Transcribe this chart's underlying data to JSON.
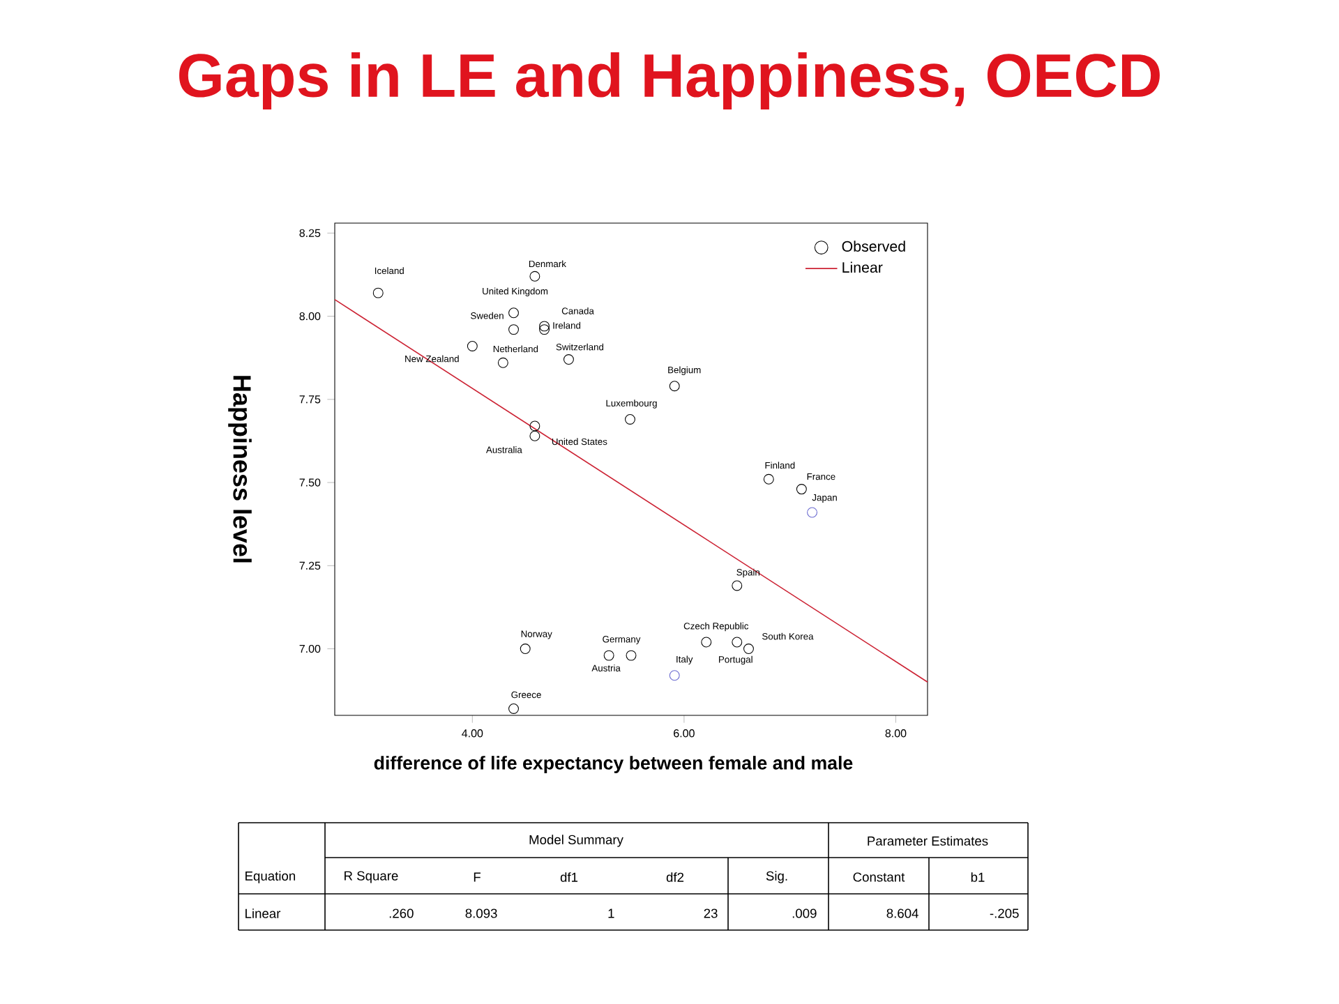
{
  "chart_data": {
    "type": "scatter",
    "title": "Gaps in LE and Happiness, OECD",
    "xlabel": "difference of life expectancy between female and male",
    "ylabel": "Happiness level",
    "xlim": [
      2.7,
      8.3
    ],
    "ylim": [
      6.8,
      8.28
    ],
    "xticks": [
      {
        "value": 4,
        "label": "4.00"
      },
      {
        "value": 6,
        "label": "6.00"
      },
      {
        "value": 8,
        "label": "8.00"
      }
    ],
    "yticks": [
      {
        "value": 7,
        "label": "7.00"
      },
      {
        "value": 7.25,
        "label": "7.25"
      },
      {
        "value": 7.5,
        "label": "7.50"
      },
      {
        "value": 7.75,
        "label": "7.75"
      },
      {
        "value": 8,
        "label": "8.00"
      },
      {
        "value": 8.25,
        "label": "8.25"
      }
    ],
    "legend": "top right",
    "series": [
      {
        "name": "Observed",
        "marker": "circle",
        "color": "#000000",
        "x": [
          3.11,
          4.59,
          4.39,
          4.39,
          4.68,
          4.68,
          4.0,
          4.29,
          4.91,
          5.91,
          5.49,
          4.59,
          4.59,
          6.8,
          7.11,
          7.21,
          6.5,
          6.21,
          6.5,
          6.61,
          4.5,
          4.39,
          5.5,
          5.29,
          5.91
        ],
        "values": [
          8.07,
          8.12,
          8.01,
          7.96,
          7.97,
          7.96,
          7.91,
          7.86,
          7.87,
          7.79,
          7.69,
          7.67,
          7.64,
          7.51,
          7.48,
          7.41,
          7.19,
          7.02,
          7.02,
          7.0,
          7.0,
          6.82,
          6.98,
          6.98,
          6.92
        ],
        "colors": [
          "#000000",
          "#000000",
          "#000000",
          "#000000",
          "#000000",
          "#000000",
          "#000000",
          "#000000",
          "#000000",
          "#000000",
          "#000000",
          "#000000",
          "#000000",
          "#000000",
          "#000000",
          "#6a6ad0",
          "#000000",
          "#000000",
          "#000000",
          "#000000",
          "#000000",
          "#000000",
          "#000000",
          "#000000",
          "#6a6ad0"
        ]
      },
      {
        "name": "Linear",
        "type": "line",
        "marker": "none",
        "color": "#cc2233",
        "x": [
          2.7,
          8.3
        ],
        "values": [
          8.05,
          6.9
        ]
      }
    ],
    "annotations": [
      {
        "text": "Iceland",
        "x": 3.11,
        "y": 8.07
      },
      {
        "text": "Denmark",
        "x": 4.59,
        "y": 8.12
      },
      {
        "text": "United Kingdom",
        "x": 4.39,
        "y": 8.01
      },
      {
        "text": "Sweden",
        "x": 4.39,
        "y": 7.96
      },
      {
        "text": "Canada",
        "x": 4.68,
        "y": 7.97
      },
      {
        "text": "Ireland",
        "x": 4.68,
        "y": 7.96
      },
      {
        "text": "New Zealand",
        "x": 4.0,
        "y": 7.91
      },
      {
        "text": "Netherland",
        "x": 4.29,
        "y": 7.86
      },
      {
        "text": "Switzerland",
        "x": 4.91,
        "y": 7.87
      },
      {
        "text": "Belgium",
        "x": 5.91,
        "y": 7.79
      },
      {
        "text": "Luxembourg",
        "x": 5.49,
        "y": 7.69
      },
      {
        "text": "Australia",
        "x": 4.59,
        "y": 7.67
      },
      {
        "text": "United States",
        "x": 4.59,
        "y": 7.64
      },
      {
        "text": "Finland",
        "x": 6.8,
        "y": 7.51
      },
      {
        "text": "France",
        "x": 7.11,
        "y": 7.48
      },
      {
        "text": "Japan",
        "x": 7.21,
        "y": 7.41
      },
      {
        "text": "Spain",
        "x": 6.5,
        "y": 7.19
      },
      {
        "text": "Czech Republic",
        "x": 6.21,
        "y": 7.02
      },
      {
        "text": "Portugal",
        "x": 6.5,
        "y": 7.02
      },
      {
        "text": "South Korea",
        "x": 6.61,
        "y": 7.0
      },
      {
        "text": "Norway",
        "x": 4.5,
        "y": 7.0
      },
      {
        "text": "Greece",
        "x": 4.39,
        "y": 6.82
      },
      {
        "text": "Germany",
        "x": 5.5,
        "y": 6.98
      },
      {
        "text": "Austria",
        "x": 5.29,
        "y": 6.98
      },
      {
        "text": "Italy",
        "x": 5.91,
        "y": 6.92
      },
      "Model Summary",
      "Parameter Estimates",
      "Equation",
      "R Square",
      "F",
      "df1",
      "df2",
      "Sig.",
      "Constant",
      "b1",
      "Linear",
      ".260",
      "8.093",
      "1",
      "23",
      ".009",
      "8.604",
      "-.205"
    ]
  }
}
